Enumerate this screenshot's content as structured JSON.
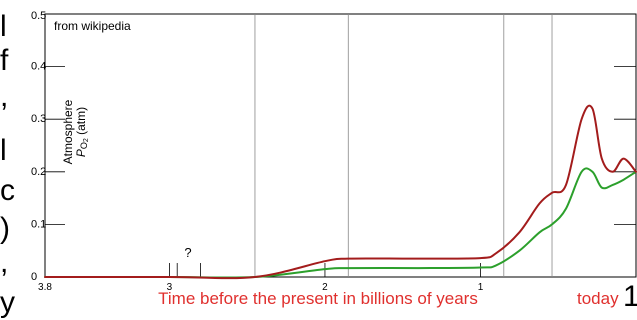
{
  "page": {
    "left_edge_glyphs": [
      "l",
      "f",
      ",",
      "l",
      "c",
      ")",
      ",",
      "y"
    ],
    "right_edge_glyph": "1"
  },
  "chart_data": {
    "type": "line",
    "source_note": "from wikipedia",
    "ylabel_line1": "Atmosphere",
    "ylabel_line2_prefix": "P",
    "ylabel_line2_sub": "O",
    "ylabel_line2_subsub": "2",
    "ylabel_line2_suffix": " (atm)",
    "xlabel": "Time before the present in billions of years",
    "x_today_label": "today",
    "question_mark": "?",
    "x_tick_labels": [
      "3.8",
      "3",
      "2",
      "1"
    ],
    "x_tick_values": [
      3.8,
      3,
      2,
      1
    ],
    "y_tick_labels": [
      "0",
      "0.1",
      "0.2",
      "0.3",
      "0.4",
      "0.5"
    ],
    "y_tick_values": [
      0,
      0.1,
      0.2,
      0.3,
      0.4,
      0.5
    ],
    "xlim": [
      3.8,
      0
    ],
    "ylim": [
      0,
      0.5
    ],
    "x_axis_reversed": true,
    "grid": "vertical stage boundaries",
    "stage_boundaries": [
      2.45,
      1.85,
      0.85,
      0.54
    ],
    "question_marker_x": [
      2.95,
      2.8
    ],
    "colors": {
      "upper_bound": "#a31c1c",
      "lower_bound": "#2ca02c",
      "axis": "#000000",
      "grid": "#888888",
      "xlabel": "#e0302e"
    },
    "series": [
      {
        "id": "upper_bound",
        "x": [
          3.8,
          3.0,
          2.45,
          2.0,
          1.85,
          1.4,
          1.0,
          0.9,
          0.75,
          0.62,
          0.54,
          0.45,
          0.35,
          0.28,
          0.22,
          0.15,
          0.08,
          0.0
        ],
        "y": [
          0.0,
          0.0,
          0.0,
          0.03,
          0.035,
          0.035,
          0.036,
          0.045,
          0.085,
          0.14,
          0.16,
          0.175,
          0.3,
          0.32,
          0.225,
          0.2,
          0.225,
          0.2
        ]
      },
      {
        "id": "lower_bound",
        "x": [
          3.8,
          3.0,
          2.45,
          2.0,
          1.85,
          1.4,
          1.0,
          0.9,
          0.75,
          0.62,
          0.54,
          0.45,
          0.35,
          0.28,
          0.22,
          0.15,
          0.08,
          0.0
        ],
        "y": [
          0.0,
          0.0,
          0.0,
          0.015,
          0.017,
          0.017,
          0.018,
          0.022,
          0.05,
          0.085,
          0.1,
          0.13,
          0.2,
          0.2,
          0.17,
          0.175,
          0.185,
          0.2
        ]
      }
    ]
  }
}
